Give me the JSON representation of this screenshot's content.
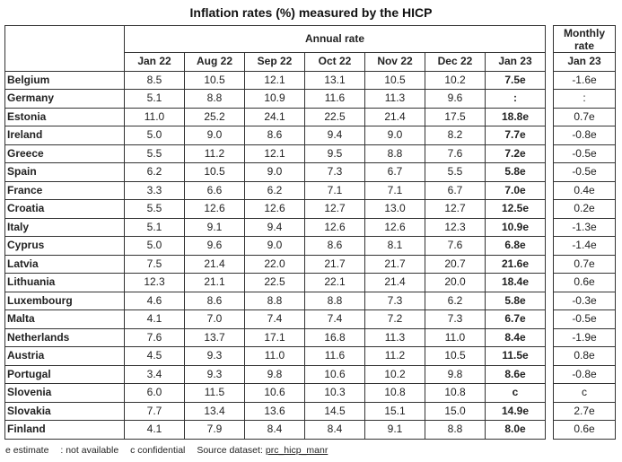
{
  "title": "Inflation rates (%) measured by the HICP",
  "header": {
    "annual_rate": "Annual rate",
    "monthly_rate": "Monthly rate",
    "months": [
      "Jan 22",
      "Aug 22",
      "Sep 22",
      "Oct 22",
      "Nov 22",
      "Dec 22",
      "Jan 23"
    ],
    "monthly_month": "Jan 23"
  },
  "rows": [
    {
      "country": "Belgium",
      "values": [
        "8.5",
        "10.5",
        "12.1",
        "13.1",
        "10.5",
        "10.2",
        "7.5e"
      ],
      "monthly": "-1.6e"
    },
    {
      "country": "Germany",
      "values": [
        "5.1",
        "8.8",
        "10.9",
        "11.6",
        "11.3",
        "9.6",
        ":"
      ],
      "monthly": ":"
    },
    {
      "country": "Estonia",
      "values": [
        "11.0",
        "25.2",
        "24.1",
        "22.5",
        "21.4",
        "17.5",
        "18.8e"
      ],
      "monthly": "0.7e"
    },
    {
      "country": "Ireland",
      "values": [
        "5.0",
        "9.0",
        "8.6",
        "9.4",
        "9.0",
        "8.2",
        "7.7e"
      ],
      "monthly": "-0.8e"
    },
    {
      "country": "Greece",
      "values": [
        "5.5",
        "11.2",
        "12.1",
        "9.5",
        "8.8",
        "7.6",
        "7.2e"
      ],
      "monthly": "-0.5e"
    },
    {
      "country": "Spain",
      "values": [
        "6.2",
        "10.5",
        "9.0",
        "7.3",
        "6.7",
        "5.5",
        "5.8e"
      ],
      "monthly": "-0.5e"
    },
    {
      "country": "France",
      "values": [
        "3.3",
        "6.6",
        "6.2",
        "7.1",
        "7.1",
        "6.7",
        "7.0e"
      ],
      "monthly": "0.4e"
    },
    {
      "country": "Croatia",
      "values": [
        "5.5",
        "12.6",
        "12.6",
        "12.7",
        "13.0",
        "12.7",
        "12.5e"
      ],
      "monthly": "0.2e"
    },
    {
      "country": "Italy",
      "values": [
        "5.1",
        "9.1",
        "9.4",
        "12.6",
        "12.6",
        "12.3",
        "10.9e"
      ],
      "monthly": "-1.3e"
    },
    {
      "country": "Cyprus",
      "values": [
        "5.0",
        "9.6",
        "9.0",
        "8.6",
        "8.1",
        "7.6",
        "6.8e"
      ],
      "monthly": "-1.4e"
    },
    {
      "country": "Latvia",
      "values": [
        "7.5",
        "21.4",
        "22.0",
        "21.7",
        "21.7",
        "20.7",
        "21.6e"
      ],
      "monthly": "0.7e"
    },
    {
      "country": "Lithuania",
      "values": [
        "12.3",
        "21.1",
        "22.5",
        "22.1",
        "21.4",
        "20.0",
        "18.4e"
      ],
      "monthly": "0.6e"
    },
    {
      "country": "Luxembourg",
      "values": [
        "4.6",
        "8.6",
        "8.8",
        "8.8",
        "7.3",
        "6.2",
        "5.8e"
      ],
      "monthly": "-0.3e"
    },
    {
      "country": "Malta",
      "values": [
        "4.1",
        "7.0",
        "7.4",
        "7.4",
        "7.2",
        "7.3",
        "6.7e"
      ],
      "monthly": "-0.5e"
    },
    {
      "country": "Netherlands",
      "values": [
        "7.6",
        "13.7",
        "17.1",
        "16.8",
        "11.3",
        "11.0",
        "8.4e"
      ],
      "monthly": "-1.9e"
    },
    {
      "country": "Austria",
      "values": [
        "4.5",
        "9.3",
        "11.0",
        "11.6",
        "11.2",
        "10.5",
        "11.5e"
      ],
      "monthly": "0.8e"
    },
    {
      "country": "Portugal",
      "values": [
        "3.4",
        "9.3",
        "9.8",
        "10.6",
        "10.2",
        "9.8",
        "8.6e"
      ],
      "monthly": "-0.8e"
    },
    {
      "country": "Slovenia",
      "values": [
        "6.0",
        "11.5",
        "10.6",
        "10.3",
        "10.8",
        "10.8",
        "c"
      ],
      "monthly": "c"
    },
    {
      "country": "Slovakia",
      "values": [
        "7.7",
        "13.4",
        "13.6",
        "14.5",
        "15.1",
        "15.0",
        "14.9e"
      ],
      "monthly": "2.7e"
    },
    {
      "country": "Finland",
      "values": [
        "4.1",
        "7.9",
        "8.4",
        "8.4",
        "9.1",
        "8.8",
        "8.0e"
      ],
      "monthly": "0.6e"
    }
  ],
  "footer": {
    "estimate": "e estimate",
    "not_available": ": not available",
    "confidential": "c confidential",
    "source_label": "Source dataset:",
    "source_link": "prc_hicp_manr"
  }
}
